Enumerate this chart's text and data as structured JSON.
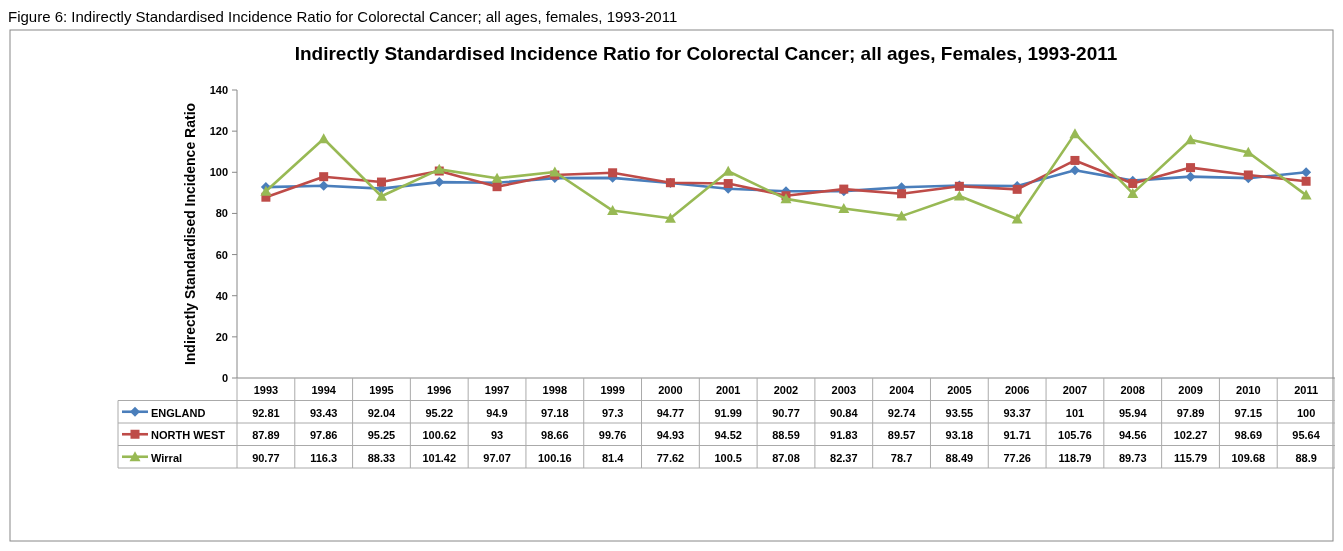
{
  "chart_data": {
    "type": "line",
    "title": "Indirectly Standardised Incidence Ratio for Colorectal Cancer; all ages, Females, 1993-2011",
    "ylabel": "Indirectly Standardised Incidence Ratio",
    "annotations": [
      "Figure 6: Indirectly Standardised Incidence Ratio for Colorectal Cancer; all ages, females, 1993-2011"
    ],
    "categories": [
      "1993",
      "1994",
      "1995",
      "1996",
      "1997",
      "1998",
      "1999",
      "2000",
      "2001",
      "2002",
      "2003",
      "2004",
      "2005",
      "2006",
      "2007",
      "2008",
      "2009",
      "2010",
      "2011"
    ],
    "series": [
      {
        "name": "ENGLAND",
        "color": "#4a7ebb",
        "marker": "diamond",
        "values": [
          92.81,
          93.43,
          92.04,
          95.22,
          94.9,
          97.18,
          97.3,
          94.77,
          91.99,
          90.77,
          90.84,
          92.74,
          93.55,
          93.37,
          101,
          95.94,
          97.89,
          97.15,
          100
        ]
      },
      {
        "name": "NORTH WEST",
        "color": "#be4b48",
        "marker": "square",
        "values": [
          87.89,
          97.86,
          95.25,
          100.62,
          93,
          98.66,
          99.76,
          94.93,
          94.52,
          88.59,
          91.83,
          89.57,
          93.18,
          91.71,
          105.76,
          94.56,
          102.27,
          98.69,
          95.64
        ]
      },
      {
        "name": "Wirral",
        "color": "#98b954",
        "marker": "triangle",
        "values": [
          90.77,
          116.3,
          88.33,
          101.42,
          97.07,
          100.16,
          81.4,
          77.62,
          100.5,
          87.08,
          82.37,
          78.7,
          88.49,
          77.26,
          118.79,
          89.73,
          115.79,
          109.68,
          88.9
        ]
      }
    ],
    "ylim": [
      0,
      140
    ],
    "yticks": [
      0,
      20,
      40,
      60,
      80,
      100,
      120,
      140
    ],
    "grid": false,
    "legend": "bottom",
    "data_labels": true,
    "line_style": "solid"
  }
}
